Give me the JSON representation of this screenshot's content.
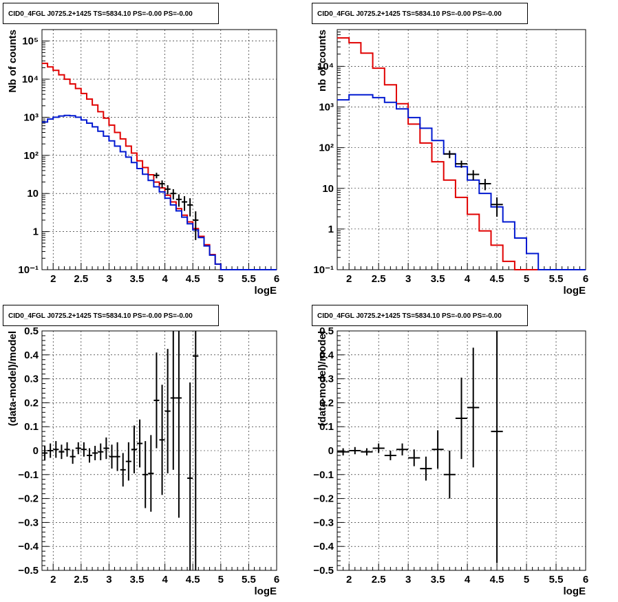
{
  "colors": {
    "data": "#000000",
    "model_total": "#e00000",
    "model_source": "#0018d0",
    "frame": "#000000"
  },
  "chart_data": [
    {
      "id": "p1",
      "type": "line",
      "title": "CID0_4FGL J0725.2+1425 TS=5834.10 PS=-0.00 PS=-0.00",
      "xlabel": "logE",
      "ylabel": "Nb of counts",
      "xlim": [
        1.8,
        6.0
      ],
      "ylim": [
        0.1,
        200000
      ],
      "yscale": "log",
      "grid": true,
      "xticks": [
        "2",
        "2.5",
        "3",
        "3.5",
        "4",
        "4.5",
        "5",
        "5.5",
        "6"
      ],
      "yticks": [
        "10⁻¹",
        "1",
        "10",
        "10²",
        "10³",
        "10⁴",
        "10⁵"
      ],
      "series": [
        {
          "role": "model_total",
          "edges": [
            1.8,
            1.9,
            2.0,
            2.1,
            2.2,
            2.3,
            2.4,
            2.5,
            2.6,
            2.7,
            2.8,
            2.9,
            3.0,
            3.1,
            3.2,
            3.3,
            3.4,
            3.5,
            3.6,
            3.7,
            3.8,
            3.9,
            4.0,
            4.1,
            4.2,
            4.3,
            4.4,
            4.5,
            4.6,
            4.7,
            4.8,
            4.9,
            5.0,
            5.1,
            5.2,
            5.3,
            5.4,
            5.5,
            5.6,
            5.7,
            5.8,
            5.9,
            6.0
          ],
          "values": [
            26000,
            21000,
            17000,
            13000,
            10000,
            7500,
            5700,
            4200,
            3000,
            2100,
            1400,
            950,
            620,
            400,
            270,
            175,
            115,
            72,
            48,
            31,
            20,
            14,
            9,
            6,
            4,
            2.7,
            1.8,
            1.2,
            0.75,
            0.45,
            0.25,
            0.14,
            0.1,
            0.1,
            0.1,
            0.1,
            0.1,
            0.1,
            0.1,
            0.1,
            0.1,
            0.1
          ]
        },
        {
          "role": "model_source",
          "edges": [
            1.8,
            1.9,
            2.0,
            2.1,
            2.2,
            2.3,
            2.4,
            2.5,
            2.6,
            2.7,
            2.8,
            2.9,
            3.0,
            3.1,
            3.2,
            3.3,
            3.4,
            3.5,
            3.6,
            3.7,
            3.8,
            3.9,
            4.0,
            4.1,
            4.2,
            4.3,
            4.4,
            4.5,
            4.6,
            4.7,
            4.8,
            4.9,
            5.0,
            5.1,
            5.2,
            5.3,
            5.4,
            5.5,
            5.6,
            5.7,
            5.8,
            5.9,
            6.0
          ],
          "values": [
            750,
            900,
            1000,
            1080,
            1120,
            1100,
            1000,
            850,
            700,
            560,
            430,
            320,
            240,
            175,
            125,
            90,
            65,
            45,
            32,
            22,
            15,
            11,
            7.5,
            5,
            3.5,
            2.4,
            1.6,
            1.1,
            0.7,
            0.42,
            0.24,
            0.14,
            0.1,
            0.1,
            0.1,
            0.1,
            0.1,
            0.1,
            0.1,
            0.1,
            0.1,
            0.1
          ]
        },
        {
          "role": "data",
          "points": [
            [
              3.85,
              30,
              5
            ],
            [
              3.95,
              18,
              4
            ],
            [
              4.05,
              13,
              3.5
            ],
            [
              4.15,
              10,
              3
            ],
            [
              4.25,
              7,
              2.5
            ],
            [
              4.35,
              6,
              2.5
            ],
            [
              4.45,
              5,
              2.5
            ],
            [
              4.55,
              2,
              1.4
            ]
          ],
          "xerr": 0.05
        }
      ]
    },
    {
      "id": "p2",
      "type": "line",
      "title": "CID0_4FGL J0725.2+1425 TS=5834.10 PS=-0.00 PS=-0.00",
      "xlabel": "logE",
      "ylabel": "nb of counts",
      "xlim": [
        1.8,
        6.0
      ],
      "ylim": [
        0.1,
        80000
      ],
      "yscale": "log",
      "grid": true,
      "xticks": [
        "2",
        "2.5",
        "3",
        "3.5",
        "4",
        "4.5",
        "5",
        "5.5",
        "6"
      ],
      "yticks": [
        "10⁻¹",
        "1",
        "10",
        "10²",
        "10³",
        "10⁴"
      ],
      "series": [
        {
          "role": "model_total",
          "edges": [
            1.8,
            2.0,
            2.2,
            2.4,
            2.6,
            2.8,
            3.0,
            3.2,
            3.4,
            3.6,
            3.8,
            4.0,
            4.2,
            4.4,
            4.6,
            4.8,
            5.0,
            5.2,
            5.4,
            5.6,
            5.8,
            6.0
          ],
          "values": [
            50000,
            38000,
            21000,
            9000,
            3500,
            1200,
            380,
            130,
            45,
            16,
            6,
            2.3,
            0.9,
            0.4,
            0.16,
            0.1,
            0.1,
            0.1,
            0.1,
            0.1,
            0.1
          ]
        },
        {
          "role": "model_source",
          "edges": [
            1.8,
            2.0,
            2.2,
            2.4,
            2.6,
            2.8,
            3.0,
            3.2,
            3.4,
            3.6,
            3.8,
            4.0,
            4.2,
            4.4,
            4.6,
            4.8,
            5.0,
            5.2,
            5.4,
            5.6,
            5.8,
            6.0
          ],
          "values": [
            1500,
            2000,
            2000,
            1700,
            1300,
            900,
            550,
            300,
            150,
            70,
            34,
            16,
            7.5,
            3.5,
            1.5,
            0.6,
            0.25,
            0.1,
            0.1,
            0.1,
            0.1
          ]
        },
        {
          "role": "data",
          "points": [
            [
              3.7,
              70,
              15
            ],
            [
              3.9,
              40,
              8
            ],
            [
              4.1,
              22,
              6
            ],
            [
              4.3,
              13,
              4
            ],
            [
              4.5,
              4,
              2
            ]
          ],
          "xerr": 0.1
        }
      ]
    },
    {
      "id": "p3",
      "type": "scatter",
      "title": "CID0_4FGL J0725.2+1425 TS=5834.10 PS=-0.00 PS=-0.00",
      "xlabel": "logE",
      "ylabel": "(data-model)/model",
      "xlim": [
        1.8,
        6.0
      ],
      "ylim": [
        -0.5,
        0.5
      ],
      "grid": true,
      "xticks": [
        "2",
        "2.5",
        "3",
        "3.5",
        "4",
        "4.5",
        "5",
        "5.5",
        "6"
      ],
      "yticks": [
        "−0.5",
        "−0.4",
        "−0.3",
        "−0.2",
        "−0.1",
        "0",
        "0.1",
        "0.2",
        "0.3",
        "0.4",
        "0.5"
      ],
      "series": [
        {
          "role": "data",
          "xerr": 0.05,
          "points": [
            [
              1.85,
              -0.01,
              0.03
            ],
            [
              1.95,
              0.0,
              0.03
            ],
            [
              2.05,
              0.005,
              0.035
            ],
            [
              2.15,
              -0.005,
              0.03
            ],
            [
              2.25,
              0.005,
              0.03
            ],
            [
              2.35,
              -0.025,
              0.03
            ],
            [
              2.45,
              0.01,
              0.025
            ],
            [
              2.55,
              0.005,
              0.03
            ],
            [
              2.65,
              -0.02,
              0.03
            ],
            [
              2.75,
              -0.01,
              0.03
            ],
            [
              2.85,
              -0.005,
              0.035
            ],
            [
              2.95,
              0.01,
              0.045
            ],
            [
              3.05,
              -0.025,
              0.05
            ],
            [
              3.15,
              -0.025,
              0.06
            ],
            [
              3.25,
              -0.08,
              0.07
            ],
            [
              3.35,
              -0.045,
              0.08
            ],
            [
              3.45,
              0.005,
              0.1
            ],
            [
              3.55,
              0.03,
              0.1
            ],
            [
              3.65,
              -0.1,
              0.14
            ],
            [
              3.75,
              -0.095,
              0.16
            ],
            [
              3.85,
              0.21,
              0.2
            ],
            [
              3.95,
              0.045,
              0.23
            ],
            [
              4.05,
              0.165,
              0.26
            ],
            [
              4.15,
              0.22,
              0.3
            ],
            [
              4.25,
              0.22,
              0.5
            ],
            [
              4.45,
              -0.115,
              0.4
            ],
            [
              4.55,
              0.395,
              0.9
            ]
          ]
        }
      ]
    },
    {
      "id": "p4",
      "type": "scatter",
      "title": "CID0_4FGL J0725.2+1425 TS=5834.10 PS=-0.00 PS=-0.00",
      "xlabel": "logE",
      "ylabel": "(data-model)/model",
      "xlim": [
        1.8,
        6.0
      ],
      "ylim": [
        -0.5,
        0.5
      ],
      "grid": true,
      "xticks": [
        "2",
        "2.5",
        "3",
        "3.5",
        "4",
        "4.5",
        "5",
        "5.5",
        "6"
      ],
      "yticks": [
        "−0.5",
        "−0.4",
        "−0.3",
        "−0.2",
        "−0.1",
        "0",
        "0.1",
        "0.2",
        "0.3",
        "0.4",
        "0.5"
      ],
      "series": [
        {
          "role": "data",
          "xerr": 0.1,
          "points": [
            [
              1.9,
              -0.005,
              0.015
            ],
            [
              2.1,
              0.0,
              0.015
            ],
            [
              2.3,
              -0.005,
              0.015
            ],
            [
              2.5,
              0.01,
              0.02
            ],
            [
              2.7,
              -0.02,
              0.02
            ],
            [
              2.9,
              0.005,
              0.025
            ],
            [
              3.1,
              -0.03,
              0.035
            ],
            [
              3.3,
              -0.075,
              0.05
            ],
            [
              3.5,
              0.005,
              0.08
            ],
            [
              3.7,
              -0.1,
              0.1
            ],
            [
              3.9,
              0.135,
              0.17
            ],
            [
              4.1,
              0.18,
              0.25
            ],
            [
              4.5,
              0.08,
              0.55
            ]
          ]
        }
      ]
    }
  ]
}
